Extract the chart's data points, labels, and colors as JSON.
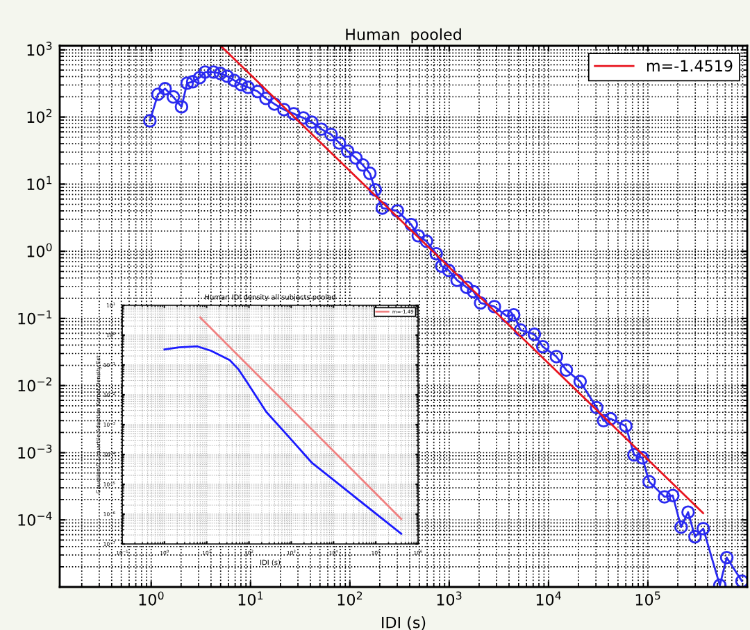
{
  "chart_data": [
    {
      "type": "line",
      "title": "Human  pooled",
      "xlabel": "IDI (s)",
      "log": "xy",
      "grid": true,
      "legend": "top right",
      "xlim": [
        0.12,
        1000000
      ],
      "ylim": [
        1e-05,
        1150
      ],
      "xticks": [
        {
          "value": 1,
          "label": "10$^{0}$"
        },
        {
          "value": 10,
          "label": "10$^{1}$"
        },
        {
          "value": 100,
          "label": "10$^{2}$"
        },
        {
          "value": 1000,
          "label": "10$^{3}$"
        },
        {
          "value": 10000,
          "label": "10$^{4}$"
        },
        {
          "value": 100000,
          "label": "10$^{5}$"
        }
      ],
      "yticks": [
        {
          "value": 0.0001,
          "label": "10$^{−4}$"
        },
        {
          "value": 0.001,
          "label": "10$^{−3}$"
        },
        {
          "value": 0.01,
          "label": "10$^{−2}$"
        },
        {
          "value": 0.1,
          "label": "10$^{−1}$"
        },
        {
          "value": 1,
          "label": "10$^{0}$"
        },
        {
          "value": 10,
          "label": "10$^{1}$"
        },
        {
          "value": 100,
          "label": "10$^{2}$"
        },
        {
          "value": 1000,
          "label": "10$^{3}$"
        }
      ],
      "series": [
        {
          "color": "#2a2af0",
          "marker": "circle",
          "x": [
            0.97,
            1.17,
            1.38,
            1.67,
            2.02,
            2.3,
            2.62,
            3.07,
            3.49,
            4.24,
            4.97,
            5.83,
            6.85,
            8.04,
            9.44,
            11.8,
            14.3,
            17.4,
            21.7,
            27.2,
            34,
            41.3,
            51.6,
            64.7,
            78.4,
            95,
            115,
            135,
            159,
            180,
            212,
            301,
            415,
            488,
            591,
            740,
            841,
            987,
            1200,
            1500,
            1760,
            2070,
            2850,
            3800,
            4460,
            5230,
            7200,
            8750,
            12000,
            15100,
            20800,
            30500,
            35800,
            42100,
            59900,
            72600,
            88000,
            103000,
            147000,
            178000,
            216000,
            254000,
            298000,
            361000,
            530000,
            622000,
            885000
          ],
          "values": [
            88,
            218,
            264,
            199,
            142,
            319,
            335,
            386,
            467,
            467,
            446,
            405,
            351,
            304,
            277,
            240,
            189,
            156,
            129,
            112,
            97,
            84,
            66,
            55,
            41,
            31,
            24.5,
            19.3,
            14.5,
            8.2,
            4.4,
            4.0,
            2.5,
            1.7,
            1.41,
            0.92,
            0.6,
            0.52,
            0.37,
            0.29,
            0.25,
            0.17,
            0.15,
            0.108,
            0.113,
            0.067,
            0.058,
            0.038,
            0.027,
            0.017,
            0.0115,
            0.0047,
            0.003,
            0.0032,
            0.0025,
            0.00093,
            0.00084,
            0.00037,
            0.00022,
            0.00023,
            7.8e-05,
            0.00013,
            5.6e-05,
            7.4e-05,
            1.06e-05,
            2.74e-05,
            1.22e-05
          ]
        },
        {
          "name": "m=-1.4519",
          "color": "#e8141e",
          "marker": "none",
          "x": [
            5,
            360000
          ],
          "values": [
            1150,
            0.000126
          ]
        }
      ]
    },
    {
      "type": "line",
      "title": "Human IDI density all subjects pooled",
      "xlabel": "IDI (s)",
      "ylabel": "Gaussian 0.1-quartile Adaptive Kernel Density Est",
      "log": "xy",
      "grid": true,
      "legend": "top right",
      "xlim": [
        0.1,
        1000000
      ],
      "ylim": [
        1e-07,
        10
      ],
      "xticks": [
        {
          "value": 0.1,
          "label": "10$^{−1}$"
        },
        {
          "value": 1,
          "label": "10$^{0}$"
        },
        {
          "value": 10,
          "label": "10$^{1}$"
        },
        {
          "value": 100,
          "label": "10$^{2}$"
        },
        {
          "value": 1000,
          "label": "10$^{3}$"
        },
        {
          "value": 10000,
          "label": "10$^{4}$"
        },
        {
          "value": 100000,
          "label": "10$^{5}$"
        },
        {
          "value": 1000000,
          "label": "10$^{6}$"
        }
      ],
      "yticks": [
        {
          "value": 1e-07,
          "label": "10$^{−7}$"
        },
        {
          "value": 1e-06,
          "label": "10$^{−6}$"
        },
        {
          "value": 1e-05,
          "label": "10$^{−5}$"
        },
        {
          "value": 0.0001,
          "label": "10$^{−4}$"
        },
        {
          "value": 0.001,
          "label": "10$^{−3}$"
        },
        {
          "value": 0.01,
          "label": "10$^{−2}$"
        },
        {
          "value": 0.1,
          "label": "10$^{−1}$"
        },
        {
          "value": 1,
          "label": "10$^{0}$"
        },
        {
          "value": 10,
          "label": "10$^{1}$"
        }
      ],
      "series": [
        {
          "color": "#1a1aff",
          "marker": "none",
          "x": [
            1,
            2.2,
            6,
            12.6,
            35,
            57,
            94,
            255,
            890,
            3100,
            10700,
            29000,
            400000
          ],
          "values": [
            0.33,
            0.39,
            0.42,
            0.3,
            0.145,
            0.07,
            0.024,
            0.0027,
            0.00038,
            5.2e-05,
            1.3e-05,
            4.2e-06,
            2.2e-07
          ]
        },
        {
          "name": "m=-1.49",
          "color": "#f08080",
          "marker": "none",
          "x": [
            7,
            400000
          ],
          "values": [
            3.9,
            6.9e-07
          ]
        }
      ]
    }
  ]
}
